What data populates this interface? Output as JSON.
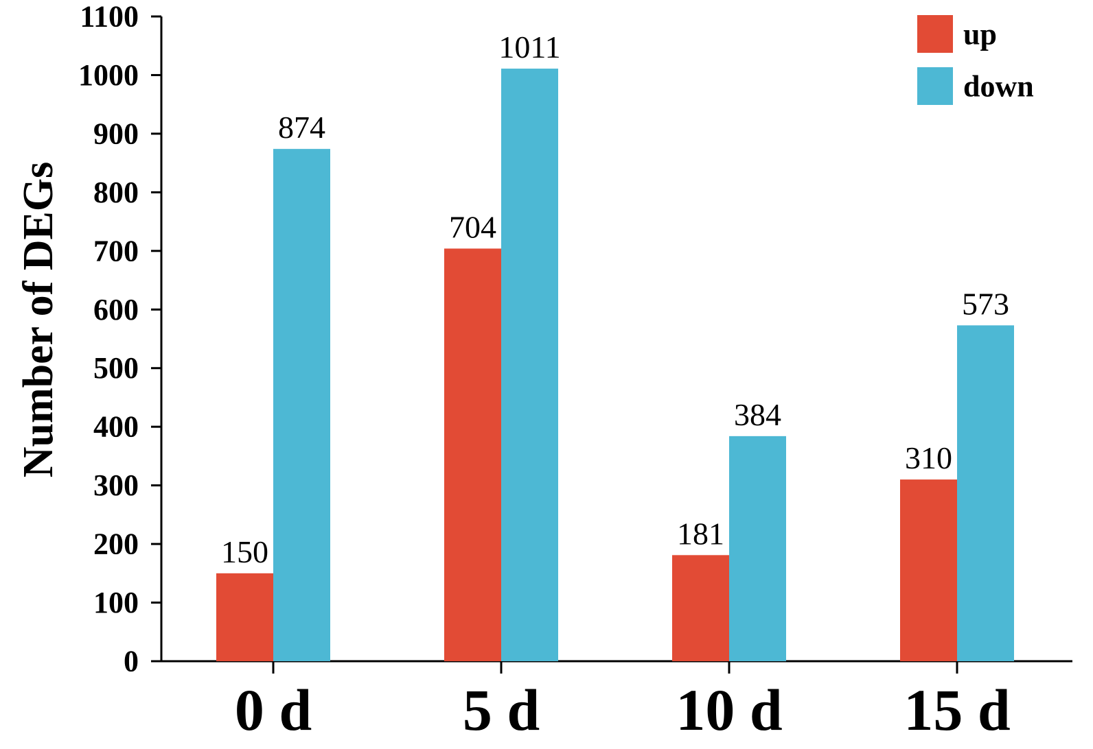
{
  "chart_data": {
    "type": "bar",
    "categories": [
      "0 d",
      "5 d",
      "10 d",
      "15 d"
    ],
    "series": [
      {
        "name": "up",
        "color": "#e24b35",
        "values": [
          150,
          704,
          181,
          310
        ]
      },
      {
        "name": "down",
        "color": "#4db8d4",
        "values": [
          874,
          1011,
          384,
          573
        ]
      }
    ],
    "ylabel": "Number of DEGs",
    "ylim": [
      0,
      1100
    ],
    "yticks": [
      "0",
      "100",
      "200",
      "300",
      "400",
      "500",
      "600",
      "700",
      "800",
      "900",
      "1000",
      "1100"
    ],
    "grid": false,
    "legend_position": "top-right"
  }
}
